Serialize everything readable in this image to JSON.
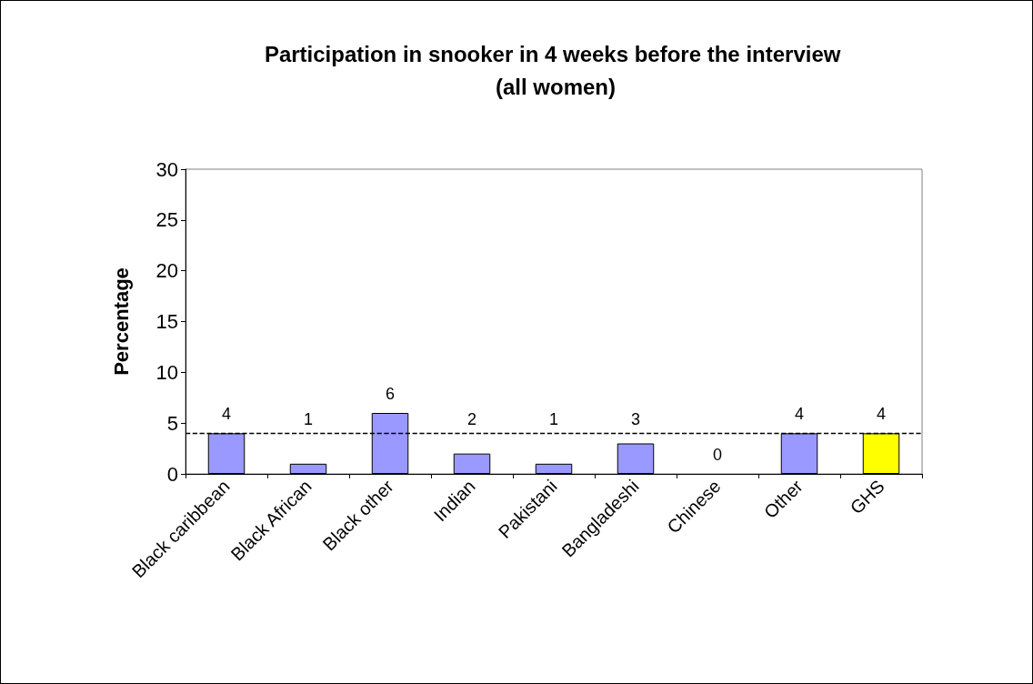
{
  "chart_data": {
    "type": "bar",
    "title": "Participation in snooker in 4 weeks before the interview (all women)",
    "ylabel": "Percentage",
    "categories": [
      "Black caribbean",
      "Black African",
      "Black other",
      "Indian",
      "Pakistani",
      "Bangladeshi",
      "Chinese",
      "Other",
      "GHS"
    ],
    "values": [
      4,
      1,
      6,
      2,
      1,
      3,
      0,
      4,
      4
    ],
    "colors": [
      "#9999ff",
      "#9999ff",
      "#9999ff",
      "#9999ff",
      "#9999ff",
      "#9999ff",
      "#9999ff",
      "#9999ff",
      "#ffff00"
    ],
    "ylim": [
      0,
      30
    ],
    "yticks": [
      0,
      5,
      10,
      15,
      20,
      25,
      30
    ],
    "grid": false,
    "data_labels": true,
    "ref_lines": [
      {
        "axis": "y",
        "value": 4,
        "line_style": "dashed",
        "color": "#000000"
      }
    ]
  }
}
